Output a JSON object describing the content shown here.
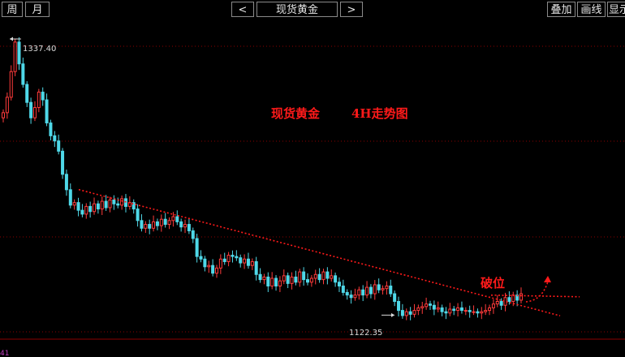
{
  "toolbar": {
    "week_label": "周",
    "month_label": "月",
    "prev_label": "<",
    "symbol_label": "现货黄金",
    "next_label": ">",
    "overlay_label": "叠加",
    "draw_label": "画线",
    "display_label": "显示"
  },
  "annotations": {
    "title_left": "现货黄金",
    "title_right": "4H走势图",
    "breakout_label": "破位"
  },
  "bottom_status": "41",
  "colors": {
    "up": "#ff3b3b",
    "down": "#4fd8e8",
    "grid": "#8b0000",
    "annotation": "#ff1a1a",
    "text": "#e6e6e6"
  },
  "chart_data": {
    "type": "candlestick",
    "title": "现货黄金 4H走势图",
    "ylim": [
      1115,
      1345
    ],
    "max_label": "1337.40",
    "min_label": "1122.35",
    "max_value": 1337.4,
    "min_value": 1122.35,
    "closes": [
      1280,
      1292,
      1312,
      1335,
      1318,
      1302,
      1288,
      1276,
      1284,
      1296,
      1290,
      1272,
      1262,
      1258,
      1250,
      1232,
      1220,
      1208,
      1210,
      1204,
      1201,
      1207,
      1203,
      1209,
      1205,
      1211,
      1206,
      1212,
      1209,
      1208,
      1213,
      1207,
      1210,
      1205,
      1196,
      1190,
      1193,
      1190,
      1195,
      1192,
      1197,
      1193,
      1196,
      1199,
      1195,
      1191,
      1193,
      1188,
      1182,
      1168,
      1166,
      1160,
      1161,
      1155,
      1159,
      1166,
      1164,
      1169,
      1168,
      1167,
      1163,
      1166,
      1161,
      1164,
      1154,
      1150,
      1152,
      1145,
      1151,
      1145,
      1149,
      1153,
      1147,
      1152,
      1148,
      1156,
      1150,
      1148,
      1151,
      1154,
      1150,
      1156,
      1151,
      1153,
      1148,
      1145,
      1140,
      1138,
      1136,
      1138,
      1142,
      1138,
      1144,
      1139,
      1146,
      1142,
      1143,
      1145,
      1139,
      1133,
      1126,
      1122,
      1125,
      1123,
      1126,
      1128,
      1129,
      1131,
      1130,
      1127,
      1128,
      1125,
      1124,
      1127,
      1126,
      1128,
      1126,
      1126,
      1125,
      1125,
      1124,
      1125,
      1126,
      1128,
      1131,
      1133,
      1130,
      1136,
      1133,
      1138,
      1134,
      1139
    ],
    "trendline": {
      "from_value": 1222,
      "to_value": 1125,
      "label": ""
    },
    "support_line": {
      "value": 1136
    }
  }
}
